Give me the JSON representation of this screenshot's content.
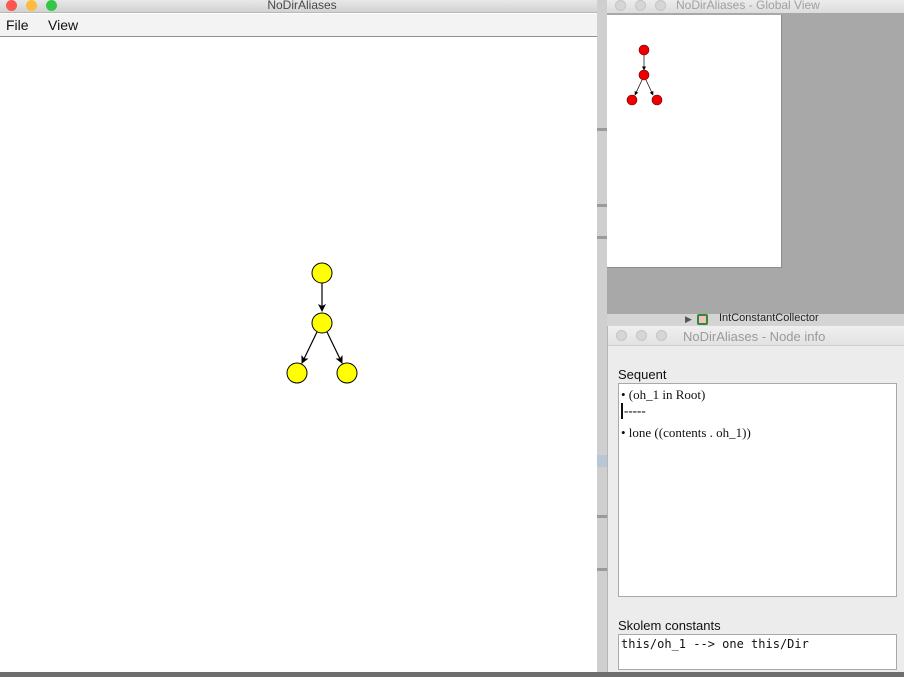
{
  "main_window": {
    "title": "NoDirAliases",
    "menu": [
      "File",
      "View"
    ],
    "colors": {
      "node_fill": "#ffff00",
      "close": "#fc5753",
      "minimize": "#fdbc40",
      "maximize": "#33c748"
    }
  },
  "global_view": {
    "title": "NoDirAliases - Global View",
    "colors": {
      "node_fill": "#ee0000"
    }
  },
  "background_app": {
    "visible_item": "IntConstantCollector"
  },
  "node_info": {
    "title": "NoDirAliases - Node info",
    "sequent_label": "Sequent",
    "antecedent": "• (oh_1 in Root)",
    "separator": "-----",
    "succedent": "• lone ((contents . oh_1))",
    "skolem_label": "Skolem constants",
    "skolem_text": "this/oh_1 --> one this/Dir"
  }
}
